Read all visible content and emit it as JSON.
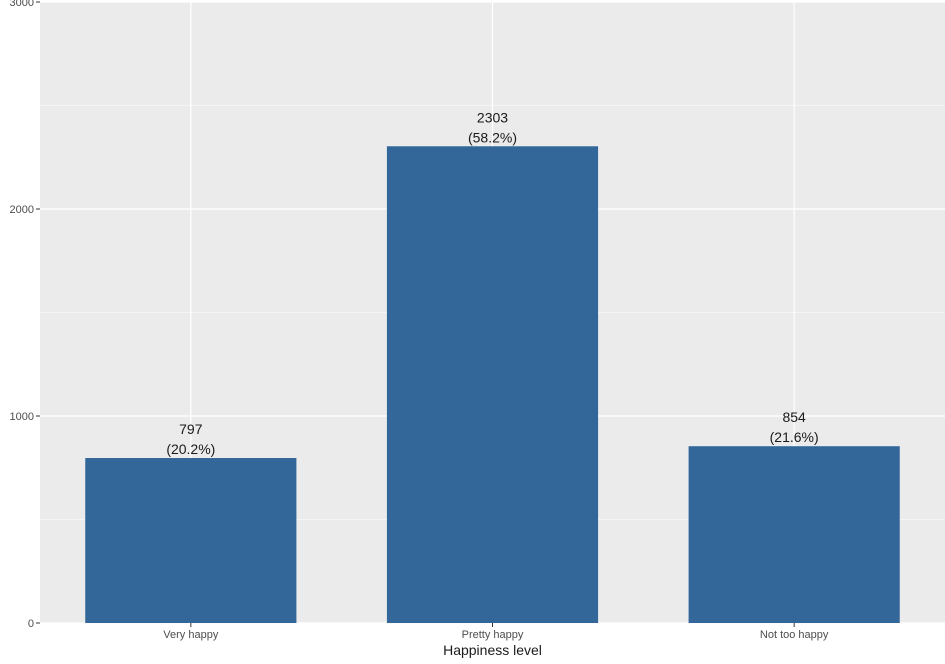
{
  "chart_data": {
    "type": "bar",
    "categories": [
      "Very happy",
      "Pretty happy",
      "Not too happy"
    ],
    "values": [
      797,
      2303,
      854
    ],
    "data_labels": [
      {
        "count": "797",
        "percent": "(20.2%)"
      },
      {
        "count": "2303",
        "percent": "(58.2%)"
      },
      {
        "count": "854",
        "percent": "(21.6%)"
      }
    ],
    "title": "",
    "xlabel": "Happiness level",
    "ylabel": "",
    "ylim": [
      0,
      3000
    ],
    "yticks": [
      0,
      1000,
      2000,
      3000
    ],
    "y_tick_labels": [
      "0",
      "1000",
      "2000",
      "3000"
    ],
    "minor_gridlines": [
      500,
      1500,
      2500
    ],
    "grid": true,
    "legend": "none",
    "colors": {
      "bar": "#336699",
      "panel_background": "#EBEBEB",
      "gridline": "#FFFFFF",
      "text": "#1A1A1A",
      "tick_text": "#4D4D4D"
    }
  }
}
